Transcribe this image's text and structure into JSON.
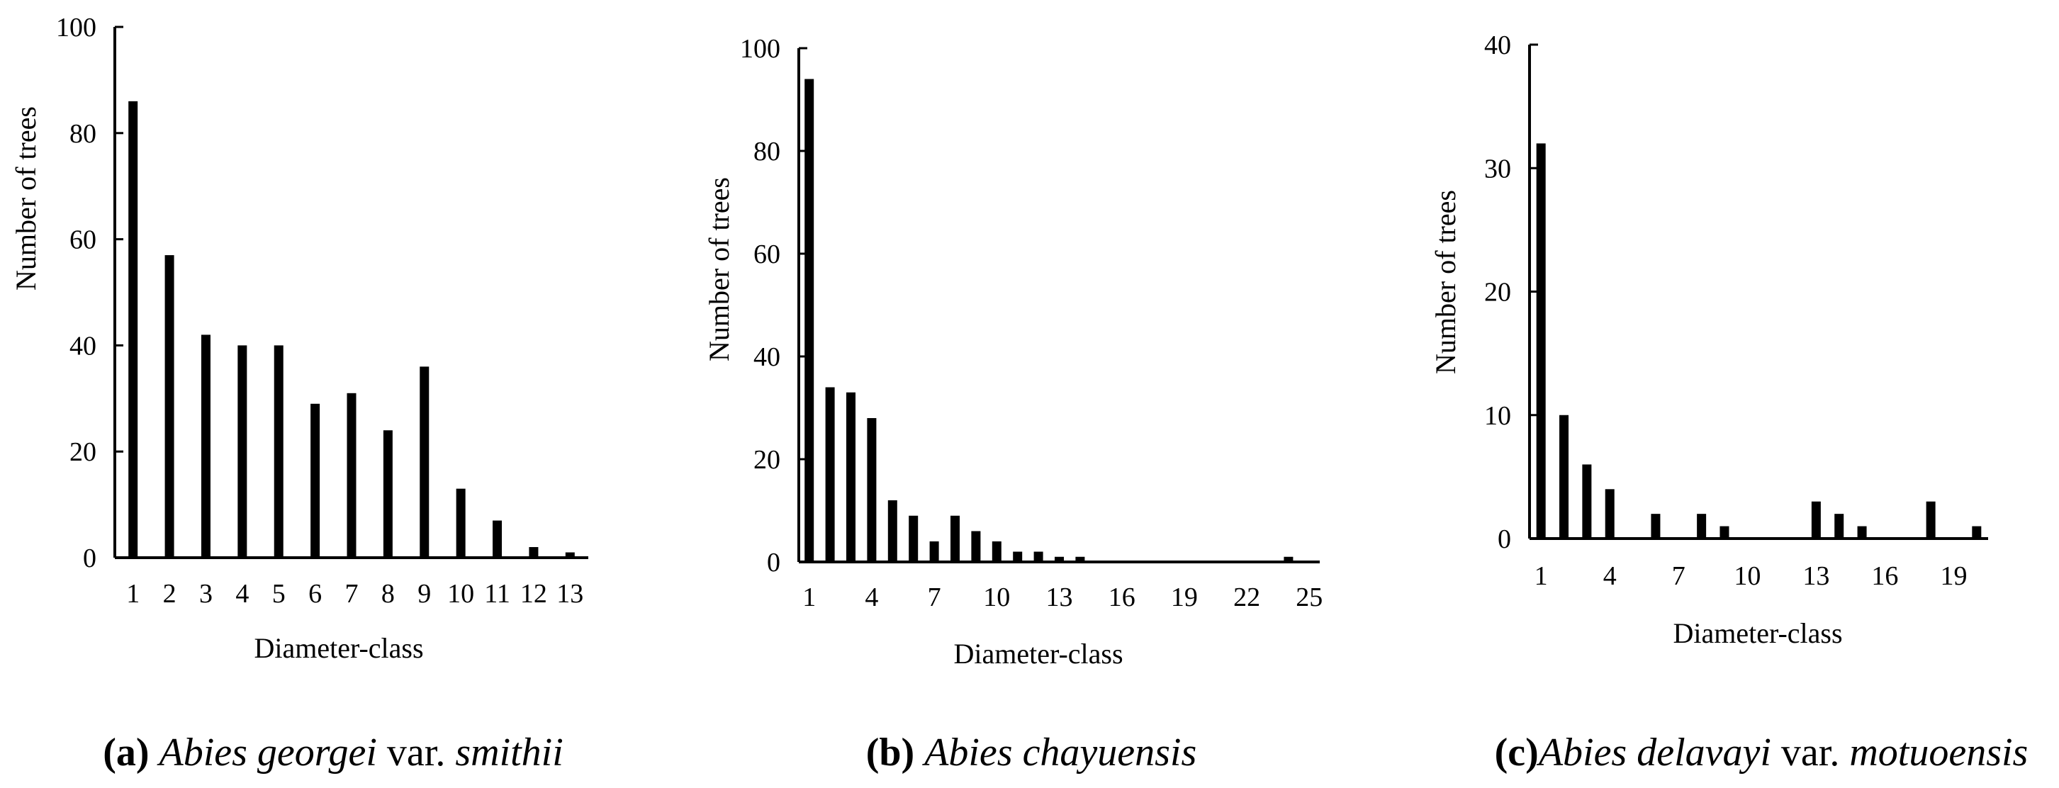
{
  "figure": {
    "panels": [
      {
        "caption_letter": "(a)",
        "caption_italic_1": "Abies georgei",
        "caption_plain": " var. ",
        "caption_italic_2": "smithii",
        "xlabel": "Diameter-class",
        "ylabel": "Number of trees"
      },
      {
        "caption_letter": "(b)",
        "caption_italic_1": "Abies chayuensis",
        "caption_plain": "",
        "caption_italic_2": "",
        "xlabel": "Diameter-class",
        "ylabel": "Number of trees"
      },
      {
        "caption_letter": "(c)",
        "caption_italic_1": "Abies delavayi",
        "caption_plain": " var. ",
        "caption_italic_2": "motuoensis",
        "xlabel": "Diameter-class",
        "ylabel": "Number of trees"
      }
    ]
  },
  "chart_data": [
    {
      "type": "bar",
      "title": "",
      "xlabel": "Diameter-class",
      "ylabel": "Number of trees",
      "x": [
        1,
        2,
        3,
        4,
        5,
        6,
        7,
        8,
        9,
        10,
        11,
        12,
        13
      ],
      "values": [
        86,
        57,
        42,
        40,
        40,
        29,
        31,
        24,
        36,
        13,
        7,
        2,
        1
      ],
      "xticks": [
        "1",
        "2",
        "3",
        "4",
        "5",
        "6",
        "7",
        "8",
        "9",
        "10",
        "11",
        "12",
        "13"
      ],
      "yticks": [
        "0",
        "20",
        "40",
        "60",
        "80",
        "100"
      ],
      "ylim": [
        0,
        100
      ],
      "xlim": [
        0.5,
        13.5
      ],
      "grid": false,
      "bar_color": "#000000"
    },
    {
      "type": "bar",
      "title": "",
      "xlabel": "Diameter-class",
      "ylabel": "Number of trees",
      "x": [
        1,
        2,
        3,
        4,
        5,
        6,
        7,
        8,
        9,
        10,
        11,
        12,
        13,
        14,
        15,
        16,
        17,
        18,
        19,
        20,
        21,
        22,
        23,
        24,
        25
      ],
      "values": [
        94,
        34,
        33,
        28,
        12,
        9,
        4,
        9,
        6,
        4,
        2,
        2,
        1,
        1,
        0,
        0,
        0,
        0,
        0,
        0,
        0,
        0,
        0,
        1,
        0
      ],
      "xticks": [
        "1",
        "4",
        "7",
        "10",
        "13",
        "16",
        "19",
        "22",
        "25"
      ],
      "yticks": [
        "0",
        "20",
        "40",
        "60",
        "80",
        "100"
      ],
      "ylim": [
        0,
        100
      ],
      "xlim": [
        0.5,
        25.5
      ],
      "grid": false,
      "bar_color": "#000000"
    },
    {
      "type": "bar",
      "title": "",
      "xlabel": "Diameter-class",
      "ylabel": "Number of trees",
      "x": [
        1,
        2,
        3,
        4,
        5,
        6,
        7,
        8,
        9,
        10,
        11,
        12,
        13,
        14,
        15,
        16,
        17,
        18,
        19,
        20
      ],
      "values": [
        32,
        10,
        6,
        4,
        0,
        2,
        0,
        2,
        1,
        0,
        0,
        0,
        3,
        2,
        1,
        0,
        0,
        3,
        0,
        1
      ],
      "xticks": [
        "1",
        "4",
        "7",
        "10",
        "13",
        "16",
        "19"
      ],
      "yticks": [
        "0",
        "10",
        "20",
        "30",
        "40"
      ],
      "ylim": [
        0,
        40
      ],
      "xlim": [
        0.5,
        20.5
      ],
      "grid": false,
      "bar_color": "#000000"
    }
  ]
}
